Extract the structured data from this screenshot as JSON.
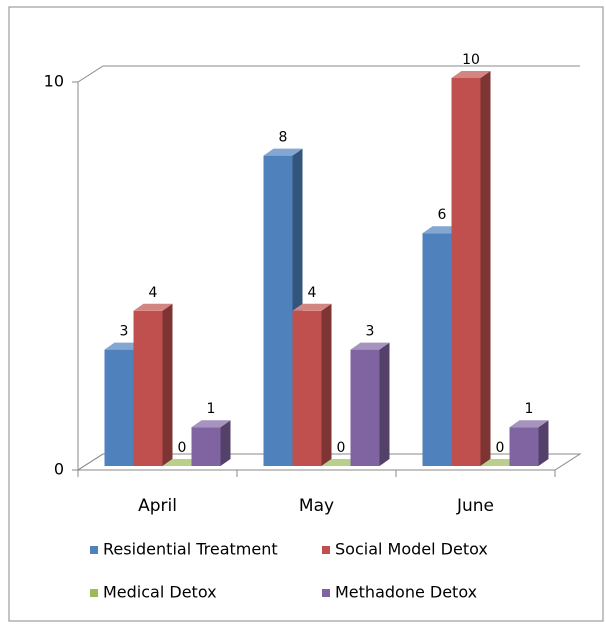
{
  "chart_data": {
    "type": "bar3d",
    "categories": [
      "April",
      "May",
      "June"
    ],
    "series": [
      {
        "name": "Residential Treatment",
        "color": "#4f81bd",
        "values": [
          3,
          8,
          6
        ]
      },
      {
        "name": "Social Model Detox",
        "color": "#c0504d",
        "values": [
          4,
          4,
          10
        ]
      },
      {
        "name": "Medical Detox",
        "color": "#9bbb59",
        "values": [
          0,
          0,
          0
        ]
      },
      {
        "name": "Methadone Detox",
        "color": "#8064a2",
        "values": [
          1,
          3,
          1
        ]
      }
    ],
    "ylim": [
      0,
      10
    ],
    "yticks": [
      0,
      10
    ],
    "grid": true,
    "legend": "bottom"
  }
}
